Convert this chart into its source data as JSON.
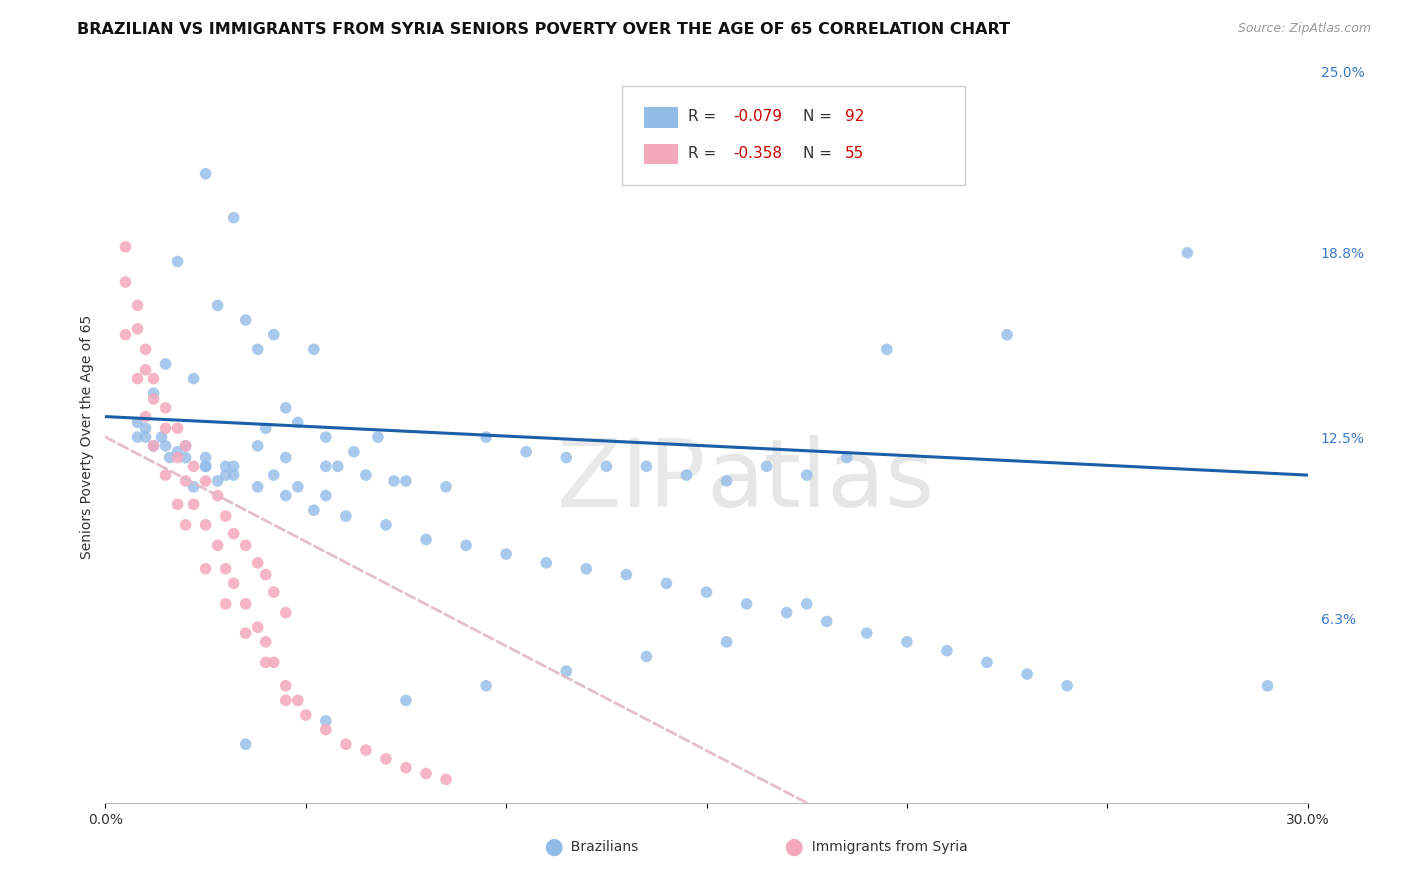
{
  "title": "BRAZILIAN VS IMMIGRANTS FROM SYRIA SENIORS POVERTY OVER THE AGE OF 65 CORRELATION CHART",
  "source": "Source: ZipAtlas.com",
  "ylabel": "Seniors Poverty Over the Age of 65",
  "watermark": "ZIPatlas",
  "xlim": [
    0.0,
    0.3
  ],
  "ylim": [
    0.0,
    0.25
  ],
  "xtick_positions": [
    0.0,
    0.05,
    0.1,
    0.15,
    0.2,
    0.25,
    0.3
  ],
  "xtick_labels": [
    "0.0%",
    "",
    "",
    "",
    "",
    "",
    "30.0%"
  ],
  "ytick_values": [
    0.0,
    0.063,
    0.125,
    0.188,
    0.25
  ],
  "ytick_labels_right": [
    "",
    "6.3%",
    "12.5%",
    "18.8%",
    "25.0%"
  ],
  "brazil_R": "-0.079",
  "brazil_N": "92",
  "syria_R": "-0.358",
  "syria_N": "55",
  "brazil_color": "#92bce8",
  "syria_color": "#f4a8be",
  "brazil_line_color": "#1a5fa8",
  "syria_line_color": "#e0b8c8",
  "brazil_line_x": [
    0.0,
    0.3
  ],
  "brazil_line_y": [
    0.132,
    0.112
  ],
  "syria_line_x": [
    0.0,
    0.175
  ],
  "syria_line_y": [
    0.125,
    0.0
  ],
  "brazil_scatter_x": [
    0.025,
    0.032,
    0.018,
    0.028,
    0.042,
    0.038,
    0.015,
    0.022,
    0.012,
    0.048,
    0.055,
    0.062,
    0.058,
    0.072,
    0.068,
    0.045,
    0.035,
    0.052,
    0.095,
    0.105,
    0.115,
    0.125,
    0.135,
    0.145,
    0.155,
    0.165,
    0.175,
    0.185,
    0.008,
    0.01,
    0.014,
    0.02,
    0.016,
    0.025,
    0.03,
    0.032,
    0.028,
    0.022,
    0.04,
    0.038,
    0.045,
    0.055,
    0.065,
    0.075,
    0.085,
    0.008,
    0.012,
    0.018,
    0.025,
    0.032,
    0.042,
    0.048,
    0.055,
    0.01,
    0.015,
    0.02,
    0.025,
    0.03,
    0.038,
    0.045,
    0.052,
    0.06,
    0.07,
    0.08,
    0.09,
    0.1,
    0.11,
    0.12,
    0.13,
    0.14,
    0.15,
    0.16,
    0.17,
    0.18,
    0.19,
    0.2,
    0.21,
    0.22,
    0.23,
    0.24,
    0.27,
    0.29,
    0.225,
    0.195,
    0.175,
    0.155,
    0.135,
    0.115,
    0.095,
    0.075,
    0.055,
    0.035
  ],
  "brazil_scatter_y": [
    0.215,
    0.2,
    0.185,
    0.17,
    0.16,
    0.155,
    0.15,
    0.145,
    0.14,
    0.13,
    0.125,
    0.12,
    0.115,
    0.11,
    0.125,
    0.135,
    0.165,
    0.155,
    0.125,
    0.12,
    0.118,
    0.115,
    0.115,
    0.112,
    0.11,
    0.115,
    0.112,
    0.118,
    0.13,
    0.128,
    0.125,
    0.122,
    0.118,
    0.115,
    0.115,
    0.112,
    0.11,
    0.108,
    0.128,
    0.122,
    0.118,
    0.115,
    0.112,
    0.11,
    0.108,
    0.125,
    0.122,
    0.12,
    0.118,
    0.115,
    0.112,
    0.108,
    0.105,
    0.125,
    0.122,
    0.118,
    0.115,
    0.112,
    0.108,
    0.105,
    0.1,
    0.098,
    0.095,
    0.09,
    0.088,
    0.085,
    0.082,
    0.08,
    0.078,
    0.075,
    0.072,
    0.068,
    0.065,
    0.062,
    0.058,
    0.055,
    0.052,
    0.048,
    0.044,
    0.04,
    0.188,
    0.04,
    0.16,
    0.155,
    0.068,
    0.055,
    0.05,
    0.045,
    0.04,
    0.035,
    0.028,
    0.02
  ],
  "syria_scatter_x": [
    0.005,
    0.008,
    0.01,
    0.012,
    0.015,
    0.018,
    0.02,
    0.022,
    0.025,
    0.028,
    0.03,
    0.032,
    0.035,
    0.038,
    0.04,
    0.042,
    0.045,
    0.005,
    0.008,
    0.01,
    0.012,
    0.015,
    0.018,
    0.02,
    0.022,
    0.025,
    0.028,
    0.03,
    0.032,
    0.035,
    0.038,
    0.04,
    0.042,
    0.045,
    0.048,
    0.05,
    0.055,
    0.06,
    0.065,
    0.07,
    0.075,
    0.08,
    0.085,
    0.005,
    0.008,
    0.01,
    0.012,
    0.015,
    0.018,
    0.02,
    0.025,
    0.03,
    0.035,
    0.04,
    0.045
  ],
  "syria_scatter_y": [
    0.19,
    0.17,
    0.155,
    0.145,
    0.135,
    0.128,
    0.122,
    0.115,
    0.11,
    0.105,
    0.098,
    0.092,
    0.088,
    0.082,
    0.078,
    0.072,
    0.065,
    0.178,
    0.162,
    0.148,
    0.138,
    0.128,
    0.118,
    0.11,
    0.102,
    0.095,
    0.088,
    0.08,
    0.075,
    0.068,
    0.06,
    0.055,
    0.048,
    0.04,
    0.035,
    0.03,
    0.025,
    0.02,
    0.018,
    0.015,
    0.012,
    0.01,
    0.008,
    0.16,
    0.145,
    0.132,
    0.122,
    0.112,
    0.102,
    0.095,
    0.08,
    0.068,
    0.058,
    0.048,
    0.035
  ],
  "scatter_size": 70,
  "background_color": "#ffffff",
  "grid_color": "#d8d8d8",
  "title_fontsize": 11.5,
  "axis_fontsize": 10
}
